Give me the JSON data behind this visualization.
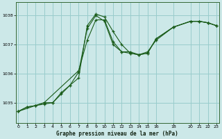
{
  "title": "Graphe pression niveau de la mer (hPa)",
  "bg_color": "#cce8e8",
  "grid_color": "#99cccc",
  "line_color": "#1a5c1a",
  "marker_color": "#1a5c1a",
  "ylim": [
    1034.3,
    1038.45
  ],
  "yticks": [
    1035,
    1036,
    1037,
    1038
  ],
  "xticks": [
    0,
    1,
    2,
    3,
    4,
    5,
    6,
    7,
    8,
    9,
    10,
    11,
    12,
    13,
    14,
    15,
    16,
    18,
    20,
    21,
    22,
    23
  ],
  "xlim": [
    -0.3,
    23.3
  ],
  "series": [
    {
      "x": [
        0,
        1,
        2,
        3,
        4,
        5,
        6,
        7,
        8,
        9,
        10,
        11,
        12,
        13,
        14,
        15,
        16,
        18,
        20,
        21,
        22,
        23
      ],
      "y": [
        1034.7,
        1034.85,
        1034.9,
        1034.95,
        1035.0,
        1035.3,
        1035.6,
        1036.05,
        1037.55,
        1038.0,
        1037.8,
        1037.0,
        1036.75,
        1036.75,
        1036.65,
        1036.75,
        1037.15,
        1037.6,
        1037.8,
        1037.8,
        1037.75,
        1037.65
      ]
    },
    {
      "x": [
        0,
        1,
        2,
        3,
        4,
        5,
        6,
        7,
        8,
        9,
        10,
        11,
        12,
        13,
        14,
        15,
        16,
        18,
        20,
        21,
        22,
        23
      ],
      "y": [
        1034.7,
        1034.85,
        1034.9,
        1035.0,
        1035.0,
        1035.35,
        1035.6,
        1035.85,
        1037.65,
        1038.05,
        1037.95,
        1037.45,
        1037.0,
        1036.7,
        1036.65,
        1036.7,
        1037.2,
        1037.6,
        1037.8,
        1037.8,
        1037.75,
        1037.65
      ]
    },
    {
      "x": [
        0,
        2,
        3,
        7,
        8,
        9,
        10,
        11,
        12,
        13,
        14,
        15,
        16,
        18,
        20,
        21,
        22,
        23
      ],
      "y": [
        1034.7,
        1034.9,
        1035.0,
        1036.1,
        1037.15,
        1037.85,
        1037.85,
        1037.1,
        1036.75,
        1036.7,
        1036.65,
        1036.7,
        1037.2,
        1037.6,
        1037.8,
        1037.8,
        1037.75,
        1037.65
      ]
    }
  ]
}
